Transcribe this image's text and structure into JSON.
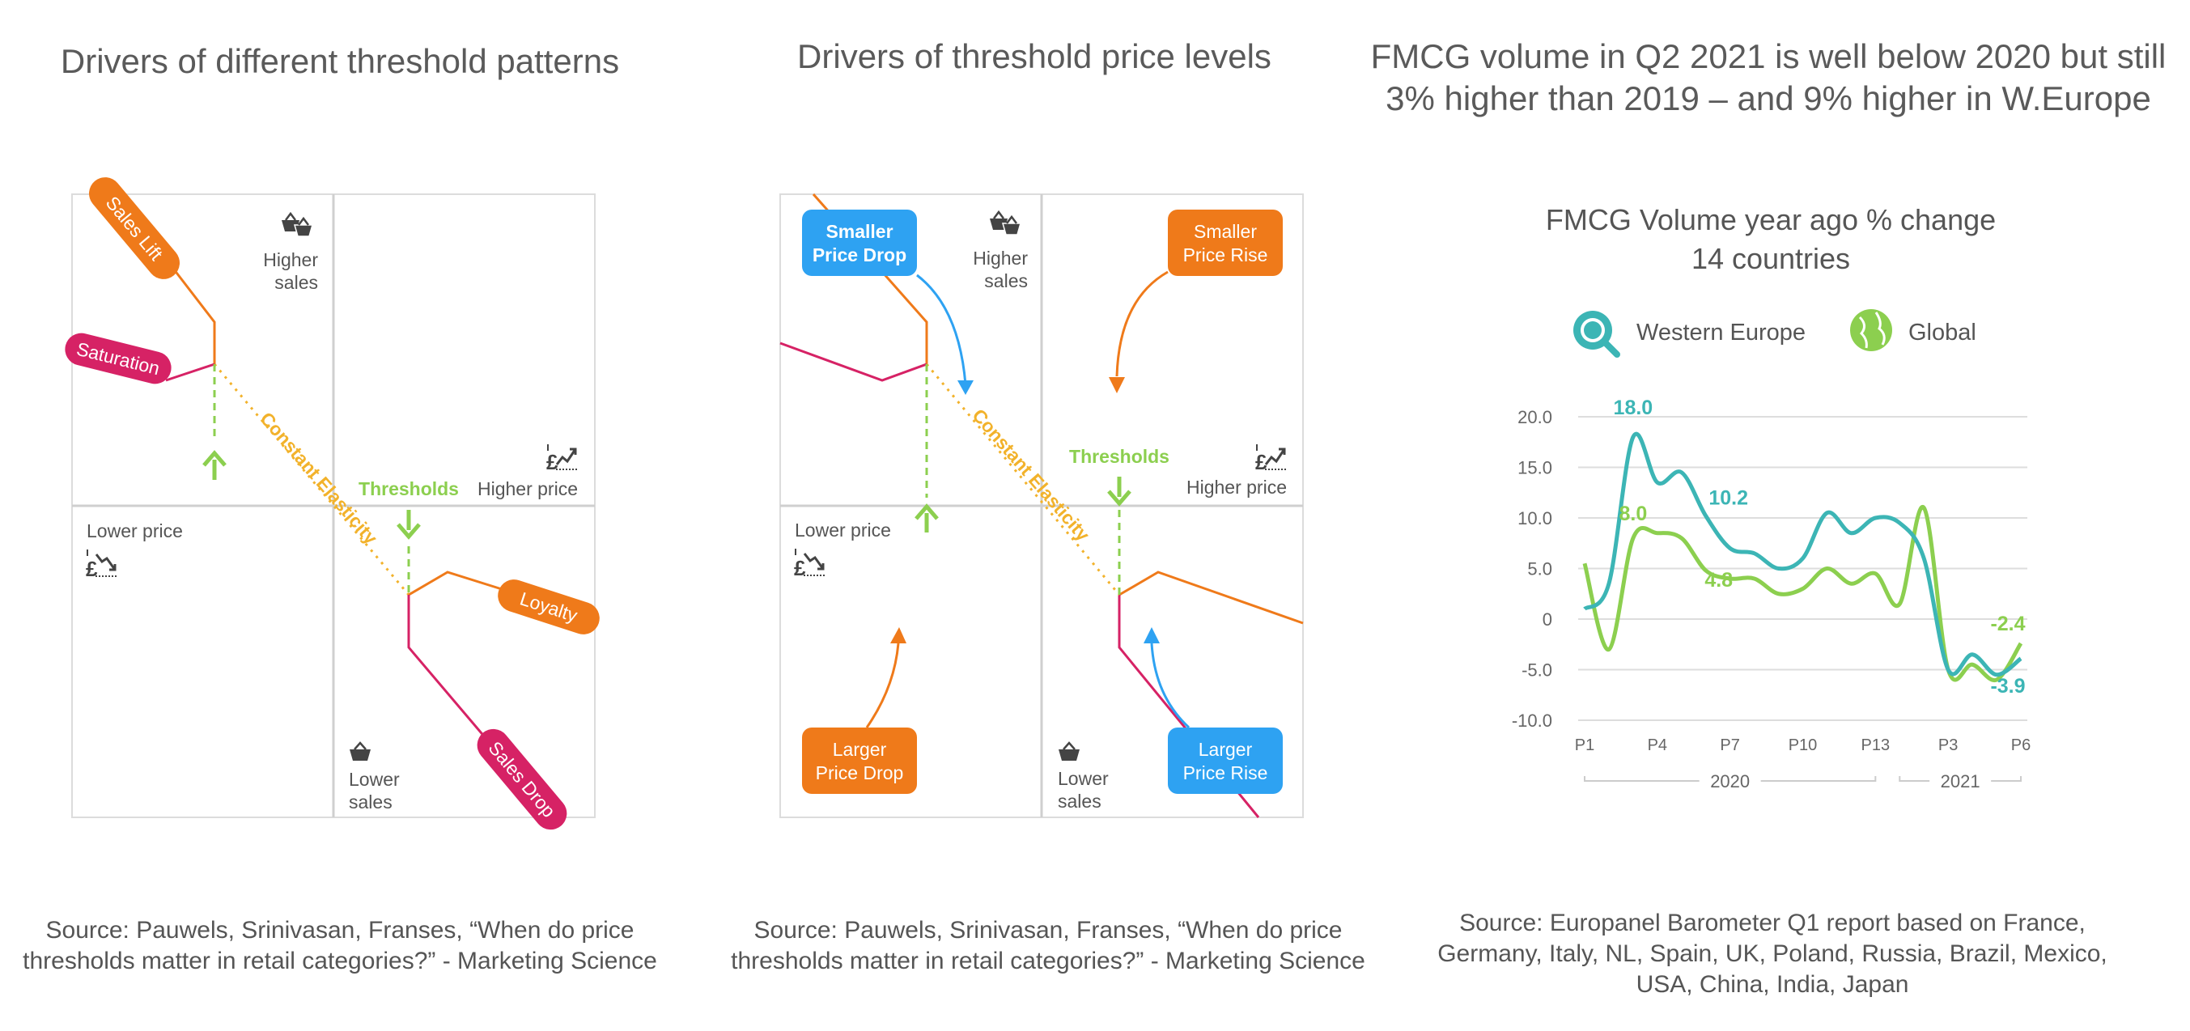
{
  "colors": {
    "orange": "#ef7a1a",
    "magenta": "#d62265",
    "green": "#8ccf4f",
    "teal": "#3cb5b5",
    "yellow": "#f2b22b",
    "blue": "#2ea2f2",
    "grid": "#d4d4d4",
    "text": "#555555"
  },
  "icons": [
    "basket-icon",
    "price-up-icon",
    "price-down-icon",
    "magnifier-globe-icon",
    "globe-icon"
  ],
  "panel1": {
    "title": "Drivers of different threshold patterns",
    "labels": {
      "sales_lift": "Sales Lift",
      "saturation": "Saturation",
      "constant_elasticity": "Constant Elasticity",
      "thresholds": "Thresholds",
      "higher_sales_1": "Higher",
      "higher_sales_2": "sales",
      "higher_price": "Higher price",
      "lower_price": "Lower price",
      "lower_sales_1": "Lower",
      "lower_sales_2": "sales",
      "loyalty": "Loyalty",
      "sales_drop": "Sales Drop"
    },
    "source_1": "Source: Pauwels, Srinivasan, Franses, “When do price",
    "source_2": "thresholds matter in retail categories?” - Marketing Science"
  },
  "panel2": {
    "title": "Drivers of threshold price levels",
    "labels": {
      "smaller_drop_1": "Smaller",
      "smaller_drop_2": "Price Drop",
      "smaller_rise_1": "Smaller",
      "smaller_rise_2": "Price Rise",
      "larger_drop_1": "Larger",
      "larger_drop_2": "Price Drop",
      "larger_rise_1": "Larger",
      "larger_rise_2": "Price Rise",
      "higher_sales_1": "Higher",
      "higher_sales_2": "sales",
      "higher_price": "Higher price",
      "lower_price": "Lower price",
      "lower_sales_1": "Lower",
      "lower_sales_2": "sales",
      "constant_elasticity": "Constant Elasticity",
      "thresholds": "Thresholds"
    },
    "source_1": "Source: Pauwels, Srinivasan, Franses, “When do price",
    "source_2": "thresholds matter in retail categories?” - Marketing Science"
  },
  "panel3": {
    "title_1": "FMCG volume in Q2 2021 is well below 2020 but still",
    "title_2": "3% higher than 2019 – and 9% higher in W.Europe",
    "source_1": "Source: Europanel Barometer Q1 report based on France,",
    "source_2": "Germany, Italy, NL, Spain, UK, Poland, Russia, Brazil, Mexico,",
    "source_3": "USA, China, India, Japan"
  },
  "chart_data": {
    "type": "line",
    "title": "FMCG Volume year ago % change",
    "subtitle": "14 countries",
    "xlabel": "",
    "ylabel": "",
    "ylim": [
      -10,
      20
    ],
    "yticks": [
      "20.0",
      "15.0",
      "10.0",
      "5.0",
      "0",
      "-5.0",
      "-10.0"
    ],
    "ytick_values": [
      20,
      15,
      10,
      5,
      0,
      -5,
      -10
    ],
    "x": [
      "P1",
      "P2",
      "P3",
      "P4",
      "P5",
      "P6",
      "P7",
      "P8",
      "P9",
      "P10",
      "P11",
      "P12",
      "P13",
      "P1",
      "P2",
      "P3",
      "P4",
      "P5",
      "P6"
    ],
    "xtick_labels": [
      "P1",
      "P4",
      "P7",
      "P10",
      "P13",
      "P3",
      "P6"
    ],
    "xtick_index": [
      0,
      3,
      6,
      9,
      12,
      15,
      18
    ],
    "groups": [
      {
        "label": "2020",
        "from": 0,
        "to": 12
      },
      {
        "label": "2021",
        "from": 13,
        "to": 18
      }
    ],
    "grid": true,
    "legend_position": "top",
    "series": [
      {
        "name": "Western Europe",
        "color": "#3cb5b5",
        "values": [
          1.0,
          3.5,
          18.0,
          13.5,
          14.5,
          10.2,
          7.0,
          6.5,
          5.0,
          6.0,
          10.5,
          8.5,
          10.0,
          9.5,
          6.0,
          -5.0,
          -3.5,
          -5.5,
          -3.9
        ]
      },
      {
        "name": "Global",
        "color": "#8ccf4f",
        "values": [
          5.5,
          -3.0,
          8.0,
          8.5,
          8.0,
          4.8,
          4.0,
          4.0,
          2.5,
          3.0,
          5.0,
          3.5,
          4.5,
          1.5,
          11.0,
          -5.0,
          -4.5,
          -6.0,
          -2.4
        ]
      }
    ],
    "annotations": [
      {
        "text": "18.0",
        "series": 0,
        "index": 2
      },
      {
        "text": "10.2",
        "series": 0,
        "index": 5
      },
      {
        "text": "8.0",
        "series": 1,
        "index": 2
      },
      {
        "text": "4.8",
        "series": 1,
        "index": 5
      },
      {
        "text": "-2.4",
        "series": 1,
        "index": 18
      },
      {
        "text": "-3.9",
        "series": 0,
        "index": 18
      }
    ]
  }
}
